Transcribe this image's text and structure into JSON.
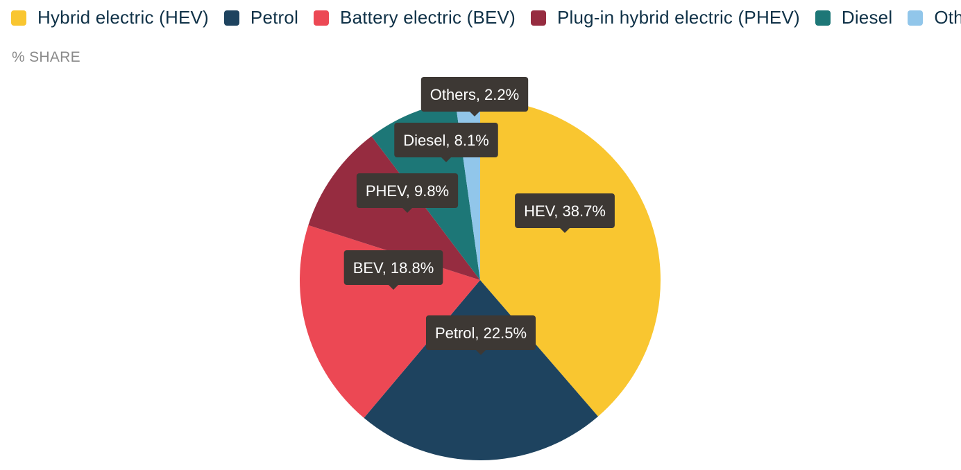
{
  "legend": [
    {
      "label": "Hybrid electric (HEV)",
      "color": "#f9c630"
    },
    {
      "label": "Petrol",
      "color": "#1e435f"
    },
    {
      "label": "Battery electric (BEV)",
      "color": "#ec4854"
    },
    {
      "label": "Plug-in hybrid electric (PHEV)",
      "color": "#962c40"
    },
    {
      "label": "Diesel",
      "color": "#1d7777"
    },
    {
      "label": "Others",
      "color": "#91c6ea"
    }
  ],
  "subtitle": "% SHARE",
  "chart_data": {
    "type": "pie",
    "unit": "%",
    "slices": [
      {
        "name": "HEV",
        "value": 38.7,
        "color": "#f9c630"
      },
      {
        "name": "Petrol",
        "value": 22.5,
        "color": "#1e435f"
      },
      {
        "name": "BEV",
        "value": 18.8,
        "color": "#ec4854"
      },
      {
        "name": "PHEV",
        "value": 9.8,
        "color": "#962c40"
      },
      {
        "name": "Diesel",
        "value": 8.1,
        "color": "#1d7777"
      },
      {
        "name": "Others",
        "value": 2.2,
        "color": "#91c6ea"
      }
    ],
    "data_labels": [
      "HEV, 38.7%",
      "Petrol, 22.5%",
      "BEV, 18.8%",
      "PHEV, 9.8%",
      "Diesel, 8.1%",
      "Others, 2.2%"
    ],
    "label_box_color": "#3d3834",
    "start": "12 o'clock, clockwise"
  }
}
